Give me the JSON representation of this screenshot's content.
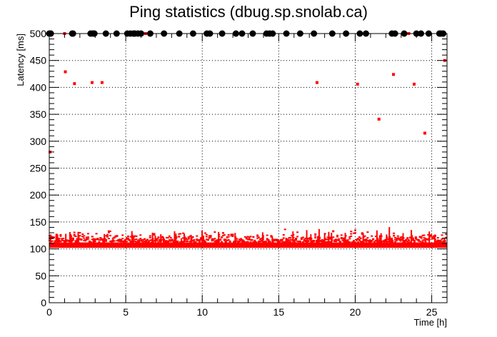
{
  "chart_data": {
    "type": "scatter",
    "title": "Ping statistics (dbug.sp.snolab.ca)",
    "xlabel": "Time [h]",
    "ylabel": "Latency [ms]",
    "xlim": [
      0,
      26
    ],
    "ylim": [
      0,
      500
    ],
    "x_ticks": [
      0,
      5,
      10,
      15,
      20,
      25
    ],
    "y_ticks": [
      0,
      50,
      100,
      150,
      200,
      250,
      300,
      350,
      400,
      450,
      500
    ],
    "grid": true,
    "colors": {
      "latency": "#ff0000",
      "timeout": "#000000"
    },
    "series": [
      {
        "kind": "latency",
        "marker": "square",
        "band": {
          "x_start": 0,
          "x_end": 26,
          "y_low": 102,
          "y_high": 112
        },
        "spike_heights": [
          128,
          135,
          118,
          130,
          122,
          136,
          125,
          131,
          119,
          134,
          127,
          142,
          121,
          133,
          129,
          137
        ],
        "outliers": [
          {
            "x": 0.05,
            "y": 280
          },
          {
            "x": 1.05,
            "y": 429
          },
          {
            "x": 1.65,
            "y": 407
          },
          {
            "x": 2.8,
            "y": 409
          },
          {
            "x": 3.45,
            "y": 409
          },
          {
            "x": 17.5,
            "y": 409
          },
          {
            "x": 20.15,
            "y": 406
          },
          {
            "x": 21.55,
            "y": 341
          },
          {
            "x": 22.5,
            "y": 424
          },
          {
            "x": 23.85,
            "y": 406
          },
          {
            "x": 24.55,
            "y": 315
          },
          {
            "x": 25.85,
            "y": 450
          },
          {
            "x": 1.0,
            "y": 500
          },
          {
            "x": 6.3,
            "y": 500
          },
          {
            "x": 20.8,
            "y": 500
          },
          {
            "x": 23.5,
            "y": 500
          }
        ]
      },
      {
        "kind": "timeout",
        "marker": "circle",
        "y": 500,
        "x": [
          0.0,
          0.1,
          1.5,
          1.55,
          2.7,
          2.85,
          2.95,
          3.7,
          4.4,
          5.1,
          5.3,
          5.5,
          5.6,
          5.8,
          6.0,
          6.6,
          7.5,
          8.5,
          9.4,
          10.3,
          10.5,
          11.3,
          12.2,
          12.6,
          13.3,
          14.2,
          14.4,
          14.6,
          15.5,
          16.4,
          17.3,
          18.5,
          19.4,
          20.3,
          20.7,
          22.4,
          22.6,
          23.2,
          24.0,
          24.3,
          24.8,
          25.5,
          25.6,
          25.75
        ]
      }
    ]
  }
}
